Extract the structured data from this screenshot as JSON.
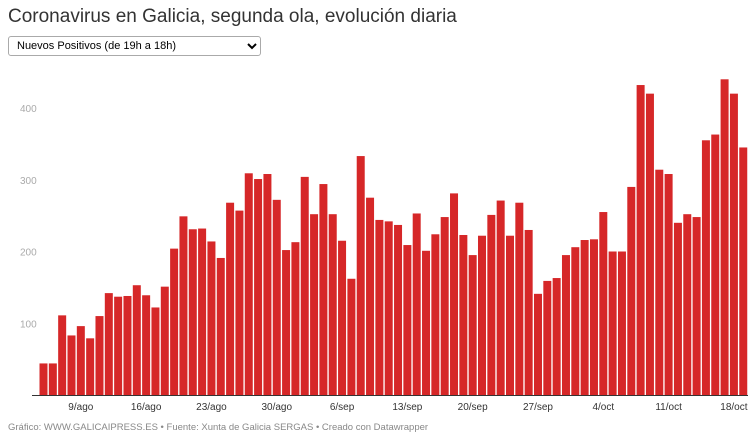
{
  "title": "Coronavirus en Galicia, segunda ola, evolución diaria",
  "selector": {
    "selected": "Nuevos Positivos (de 19h a 18h)"
  },
  "footer": "Gráfico: WWW.GALICAIPRESS.ES • Fuente: Xunta de Galicia SERGAS • Creado con Datawrapper",
  "chart_data": {
    "type": "bar",
    "title": "Coronavirus en Galicia, segunda ola, evolución diaria",
    "xlabel": "",
    "ylabel": "",
    "ylim": [
      0,
      450
    ],
    "yticks": [
      100,
      200,
      300,
      400
    ],
    "grid": false,
    "bar_color": "#d62728",
    "first_date": "5/ago",
    "last_date": "19/oct",
    "xtick_labels": [
      {
        "label": "9/ago",
        "index": 4
      },
      {
        "label": "16/ago",
        "index": 11
      },
      {
        "label": "23/ago",
        "index": 18
      },
      {
        "label": "30/ago",
        "index": 25
      },
      {
        "label": "6/sep",
        "index": 32
      },
      {
        "label": "13/sep",
        "index": 39
      },
      {
        "label": "20/sep",
        "index": 46
      },
      {
        "label": "27/sep",
        "index": 53
      },
      {
        "label": "4/oct",
        "index": 60
      },
      {
        "label": "11/oct",
        "index": 67
      },
      {
        "label": "18/oct",
        "index": 74
      }
    ],
    "values": [
      44,
      44,
      111,
      83,
      96,
      79,
      110,
      142,
      137,
      138,
      153,
      139,
      122,
      151,
      204,
      249,
      231,
      232,
      214,
      191,
      268,
      257,
      309,
      301,
      308,
      272,
      202,
      213,
      304,
      252,
      294,
      252,
      215,
      162,
      333,
      275,
      244,
      242,
      237,
      209,
      253,
      201,
      224,
      248,
      281,
      223,
      195,
      222,
      251,
      271,
      222,
      268,
      230,
      141,
      159,
      163,
      195,
      206,
      216,
      217,
      255,
      200,
      200,
      290,
      432,
      420,
      314,
      308,
      240,
      252,
      248,
      355,
      363,
      440,
      420,
      345
    ]
  }
}
